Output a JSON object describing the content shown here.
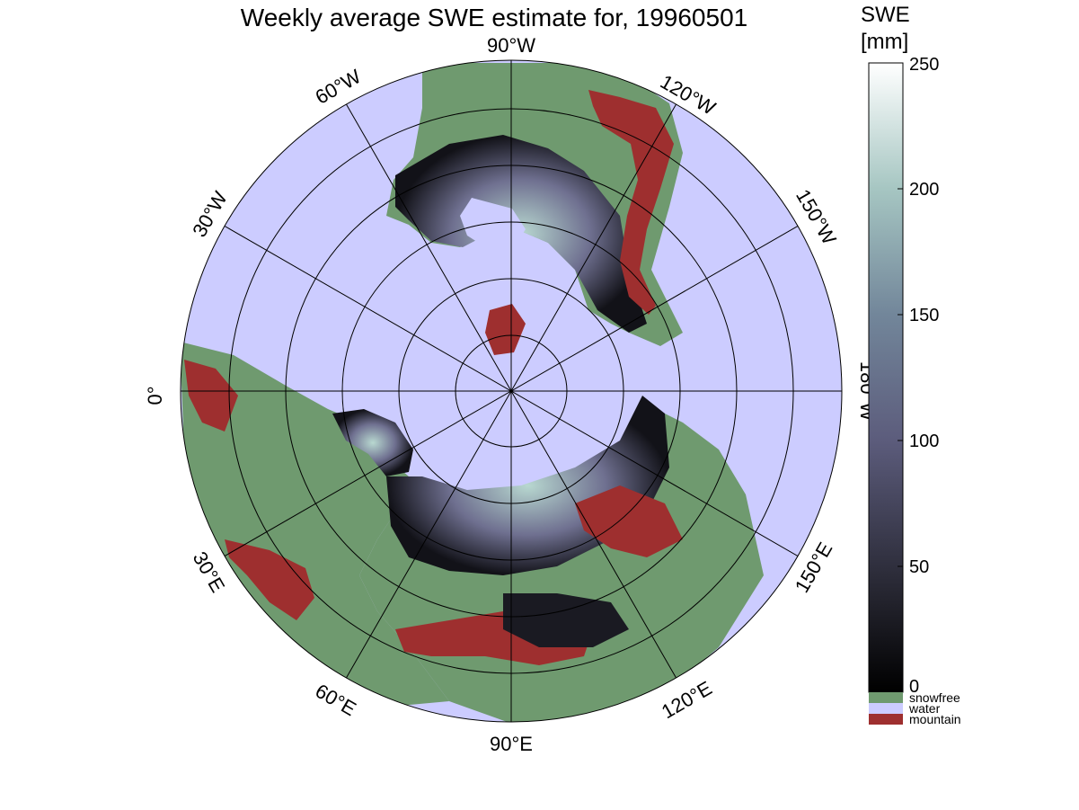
{
  "title": "Weekly average SWE estimate for, 19960501",
  "longitude_labels": [
    "90°W",
    "120°W",
    "150°W",
    "180°W",
    "150°E",
    "120°E",
    "90°E",
    "60°E",
    "30°E",
    "0°",
    "30°W",
    "60°W"
  ],
  "colorbar": {
    "title_line1": "SWE",
    "title_line2": "[mm]",
    "ticks": [
      "0",
      "50",
      "100",
      "150",
      "200",
      "250"
    ],
    "range": [
      0,
      250
    ]
  },
  "categories": [
    {
      "label": "snowfree",
      "color": "#6f9a6f"
    },
    {
      "label": "water",
      "color": "#ccccff"
    },
    {
      "label": "mountain",
      "color": "#9e2f2f"
    }
  ],
  "colors": {
    "ocean": "#ccccff",
    "land": "#6f9a6f",
    "mountain": "#9e2f2f"
  }
}
